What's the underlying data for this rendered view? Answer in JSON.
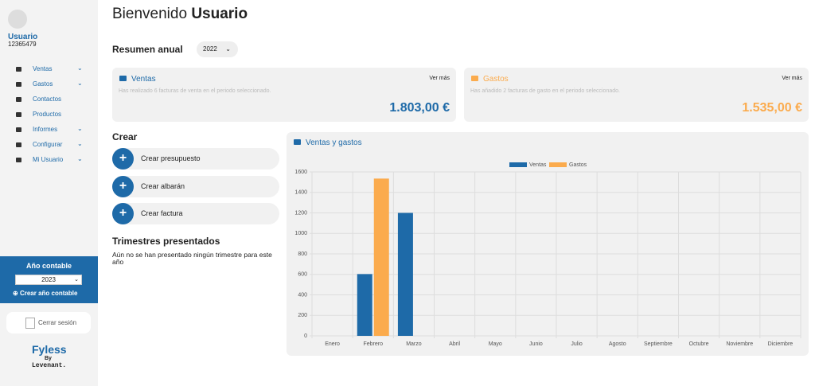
{
  "sidebar": {
    "user": {
      "name": "Usuario",
      "id": "12365479"
    },
    "menu": [
      "Ventas",
      "Gastos",
      "Contactos",
      "Productos",
      "Informes",
      "Configurar",
      "Mi Usuario"
    ],
    "year_box": {
      "title": "Año contable",
      "year": "2023",
      "create": "Crear año contable"
    },
    "logout": "Cerrar sesión",
    "logo": {
      "name": "Fyless",
      "by": "By",
      "company": "Levenant."
    }
  },
  "header": {
    "greeting": "Bienvenido",
    "name": "Usuario"
  },
  "summary": {
    "title": "Resumen anual",
    "year": "2022",
    "cards": [
      {
        "title": "Ventas",
        "link": "Ver más",
        "text": "Has realizado 6 facturas de venta en el periodo seleccionado.",
        "amount": "1.803,00 €"
      },
      {
        "title": "Gastos",
        "link": "Ver más",
        "text": "Has añadido 2 facturas de gasto en el periodo seleccionado.",
        "amount": "1.535,00 €"
      }
    ]
  },
  "create": {
    "title": "Crear",
    "buttons": [
      "Crear presupuesto",
      "Crear albarán",
      "Crear factura"
    ]
  },
  "quarters": {
    "title": "Trimestres presentados",
    "text": "Aún no se han presentado ningún trimestre para este año"
  },
  "chart_data": {
    "type": "bar",
    "title": "Ventas y gastos",
    "categories": [
      "Enero",
      "Febrero",
      "Marzo",
      "Abril",
      "Mayo",
      "Junio",
      "Julio",
      "Agosto",
      "Septiembre",
      "Octubre",
      "Noviembre",
      "Diciembre"
    ],
    "series": [
      {
        "name": "Ventas",
        "color": "#1e6aa8",
        "values": [
          0,
          603,
          1200,
          0,
          0,
          0,
          0,
          0,
          0,
          0,
          0,
          0
        ]
      },
      {
        "name": "Gastos",
        "color": "#fbab4d",
        "values": [
          0,
          1535,
          0,
          0,
          0,
          0,
          0,
          0,
          0,
          0,
          0,
          0
        ]
      }
    ],
    "ylim": [
      0,
      1600
    ],
    "yticks": [
      0,
      200,
      400,
      600,
      800,
      1000,
      1200,
      1400,
      1600
    ],
    "grid": true
  }
}
